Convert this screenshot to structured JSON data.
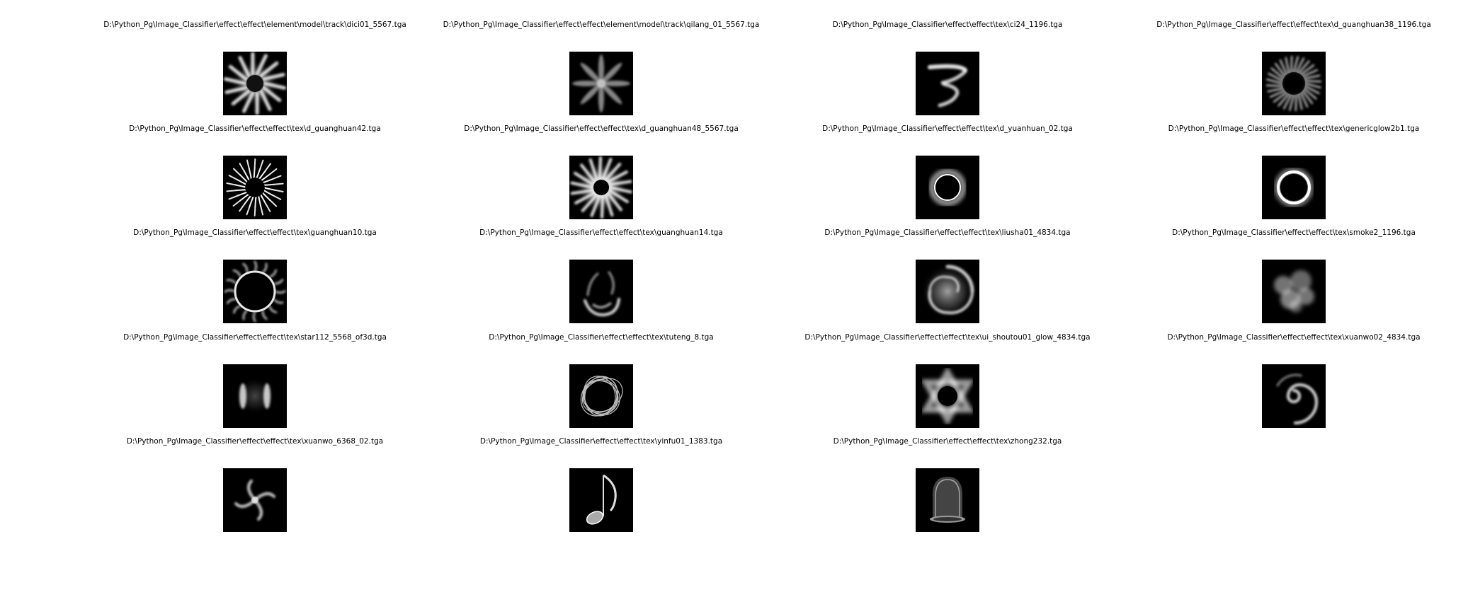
{
  "figure": {
    "columns": 4,
    "items": [
      {
        "path": "D:\\Python_Pg\\Image_Classifier\\effect\\effect\\element\\model\\track\\dici01_5567.tga",
        "icon": "spiky-splash"
      },
      {
        "path": "D:\\Python_Pg\\Image_Classifier\\effect\\effect\\element\\model\\track\\qilang_01_5567.tga",
        "icon": "radial-petals"
      },
      {
        "path": "D:\\Python_Pg\\Image_Classifier\\effect\\effect\\tex\\ci24_1196.tga",
        "icon": "streak-swirl"
      },
      {
        "path": "D:\\Python_Pg\\Image_Classifier\\effect\\effect\\tex\\d_guanghuan38_1196.tga",
        "icon": "spiky-ring"
      },
      {
        "path": "D:\\Python_Pg\\Image_Classifier\\effect\\effect\\tex\\d_guanghuan42.tga",
        "icon": "starburst"
      },
      {
        "path": "D:\\Python_Pg\\Image_Classifier\\effect\\effect\\tex\\d_guanghuan48_5567.tga",
        "icon": "glow-burst"
      },
      {
        "path": "D:\\Python_Pg\\Image_Classifier\\effect\\effect\\tex\\d_yuanhuan_02.tga",
        "icon": "soft-ring"
      },
      {
        "path": "D:\\Python_Pg\\Image_Classifier\\effect\\effect\\tex\\genericglow2b1.tga",
        "icon": "bright-ring"
      },
      {
        "path": "D:\\Python_Pg\\Image_Classifier\\effect\\effect\\tex\\guanghuan10.tga",
        "icon": "flame-ring"
      },
      {
        "path": "D:\\Python_Pg\\Image_Classifier\\effect\\effect\\tex\\guanghuan14.tga",
        "icon": "flame-arc"
      },
      {
        "path": "D:\\Python_Pg\\Image_Classifier\\effect\\effect\\tex\\liusha01_4834.tga",
        "icon": "vortex"
      },
      {
        "path": "D:\\Python_Pg\\Image_Classifier\\effect\\effect\\tex\\smoke2_1196.tga",
        "icon": "smoke"
      },
      {
        "path": "D:\\Python_Pg\\Image_Classifier\\effect\\effect\\tex\\star112_5568_of3d.tga",
        "icon": "twin-arcs"
      },
      {
        "path": "D:\\Python_Pg\\Image_Classifier\\effect\\effect\\tex\\tuteng_8.tga",
        "icon": "scribble-ring"
      },
      {
        "path": "D:\\Python_Pg\\Image_Classifier\\effect\\effect\\tex\\ui_shoutou01_glow_4834.tga",
        "icon": "hexagram-glow"
      },
      {
        "path": "D:\\Python_Pg\\Image_Classifier\\effect\\effect\\tex\\xuanwo02_4834.tga",
        "icon": "spiral"
      },
      {
        "path": "D:\\Python_Pg\\Image_Classifier\\effect\\effect\\tex\\xuanwo_6368_02.tga",
        "icon": "pinwheel"
      },
      {
        "path": "D:\\Python_Pg\\Image_Classifier\\effect\\effect\\tex\\yinfu01_1383.tga",
        "icon": "music-note"
      },
      {
        "path": "D:\\Python_Pg\\Image_Classifier\\effect\\effect\\tex\\zhong232.tga",
        "icon": "bell"
      }
    ]
  }
}
